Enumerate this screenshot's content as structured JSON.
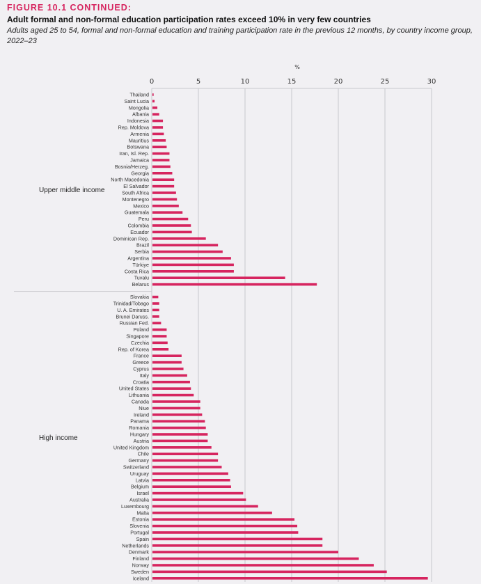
{
  "header": {
    "figure_label": "FIGURE 10.1 CONTINUED:",
    "title": "Adult formal and non-formal education participation rates exceed 10% in very few countries",
    "subtitle": "Adults aged 25 to 54, formal and non-formal education and training participation rate in the previous 12 months, by country income group, 2022–23"
  },
  "chart_data": {
    "type": "bar",
    "orientation": "horizontal",
    "title": "Adult formal and non-formal education participation rates exceed 10% in very few countries",
    "subtitle": "Adults aged 25 to 54, formal and non-formal education and training participation rate in the previous 12 months, by country income group, 2022–23",
    "xlabel": "%",
    "ylabel": "",
    "xlim": [
      0,
      30
    ],
    "xticks": [
      0,
      5,
      10,
      15,
      20,
      25,
      30
    ],
    "axis_position": "top",
    "grid": true,
    "bar_color": "#d6255f",
    "groups": [
      {
        "name": "Upper middle income",
        "categories": [
          "Thailand",
          "Saint Lucia",
          "Mongolia",
          "Albania",
          "Indonesia",
          "Rep. Moldova",
          "Armenia",
          "Mauritius",
          "Botswana",
          "Iran, Isl. Rep.",
          "Jamaica",
          "Bosnia/Herzeg.",
          "Georgia",
          "North Macedonia",
          "El Salvador",
          "South Africa",
          "Montenegro",
          "Mexico",
          "Guatemala",
          "Peru",
          "Colombia",
          "Ecuador",
          "Dominican Rep.",
          "Brazil",
          "Serbia",
          "Argentina",
          "Türkiye",
          "Costa Rica",
          "Tuvalu",
          "Belarus"
        ],
        "values": [
          0.2,
          0.3,
          0.6,
          0.8,
          1.2,
          1.2,
          1.3,
          1.5,
          1.6,
          1.9,
          1.9,
          2.0,
          2.2,
          2.4,
          2.4,
          2.6,
          2.7,
          2.9,
          3.3,
          3.9,
          4.2,
          4.3,
          5.8,
          7.1,
          7.6,
          8.5,
          8.8,
          8.8,
          14.3,
          17.7
        ]
      },
      {
        "name": "High income",
        "categories": [
          "Slovakia",
          "Trinidad/Tobago",
          "U. A. Emirates",
          "Brunei Daruss.",
          "Russian Fed.",
          "Poland",
          "Singapore",
          "Czechia",
          "Rep. of Korea",
          "France",
          "Greece",
          "Cyprus",
          "Italy",
          "Croatia",
          "United States",
          "Lithuania",
          "Canada",
          "Niue",
          "Ireland",
          "Panama",
          "Romania",
          "Hungary",
          "Austria",
          "United Kingdom",
          "Chile",
          "Germany",
          "Switzerland",
          "Uruguay",
          "Latvia",
          "Belgium",
          "Israel",
          "Australia",
          "Luxembourg",
          "Malta",
          "Estonia",
          "Slovenia",
          "Portugal",
          "Spain",
          "Netherlands",
          "Denmark",
          "Finland",
          "Norway",
          "Sweden",
          "Iceland"
        ],
        "values": [
          0.7,
          0.8,
          0.8,
          0.8,
          1.0,
          1.6,
          1.6,
          1.7,
          1.8,
          3.2,
          3.2,
          3.4,
          3.8,
          4.1,
          4.2,
          4.5,
          5.2,
          5.2,
          5.4,
          5.7,
          5.8,
          6.0,
          6.0,
          6.4,
          7.1,
          7.1,
          7.5,
          8.2,
          8.4,
          8.5,
          9.8,
          10.1,
          11.4,
          12.9,
          15.3,
          15.6,
          15.7,
          18.3,
          18.3,
          20.0,
          22.2,
          23.8,
          25.2,
          29.6
        ]
      }
    ]
  }
}
